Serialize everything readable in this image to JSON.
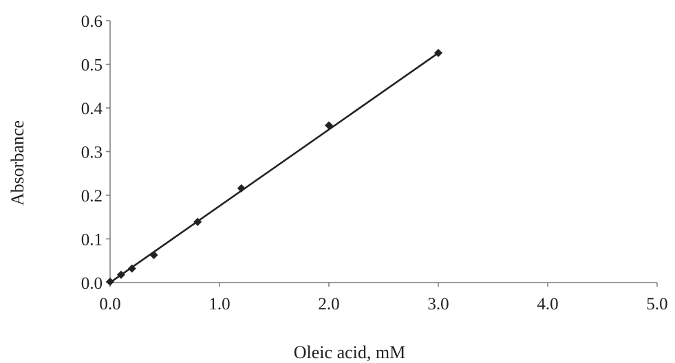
{
  "chart_data": {
    "type": "scatter",
    "title": "",
    "xlabel": "Oleic acid, mM",
    "ylabel": "Absorbance",
    "xlim": [
      0,
      5
    ],
    "ylim": [
      0,
      0.6
    ],
    "x_ticks": [
      "0.0",
      "1.0",
      "2.0",
      "3.0",
      "4.0",
      "5.0"
    ],
    "y_ticks": [
      "0.0",
      "0.1",
      "0.2",
      "0.3",
      "0.4",
      "0.5",
      "0.6"
    ],
    "grid": false,
    "legend": "none",
    "series": [
      {
        "marker": "diamond",
        "color": "#222222",
        "points": [
          {
            "x": 0.0,
            "y": 0.002
          },
          {
            "x": 0.1,
            "y": 0.018
          },
          {
            "x": 0.2,
            "y": 0.032
          },
          {
            "x": 0.4,
            "y": 0.063
          },
          {
            "x": 0.8,
            "y": 0.139
          },
          {
            "x": 1.2,
            "y": 0.216
          },
          {
            "x": 2.0,
            "y": 0.36
          },
          {
            "x": 3.0,
            "y": 0.526
          }
        ]
      }
    ],
    "trendline": {
      "type": "linear",
      "color": "#222222",
      "x_range": [
        0,
        3
      ],
      "slope": 0.1753,
      "intercept": 0.0
    }
  }
}
